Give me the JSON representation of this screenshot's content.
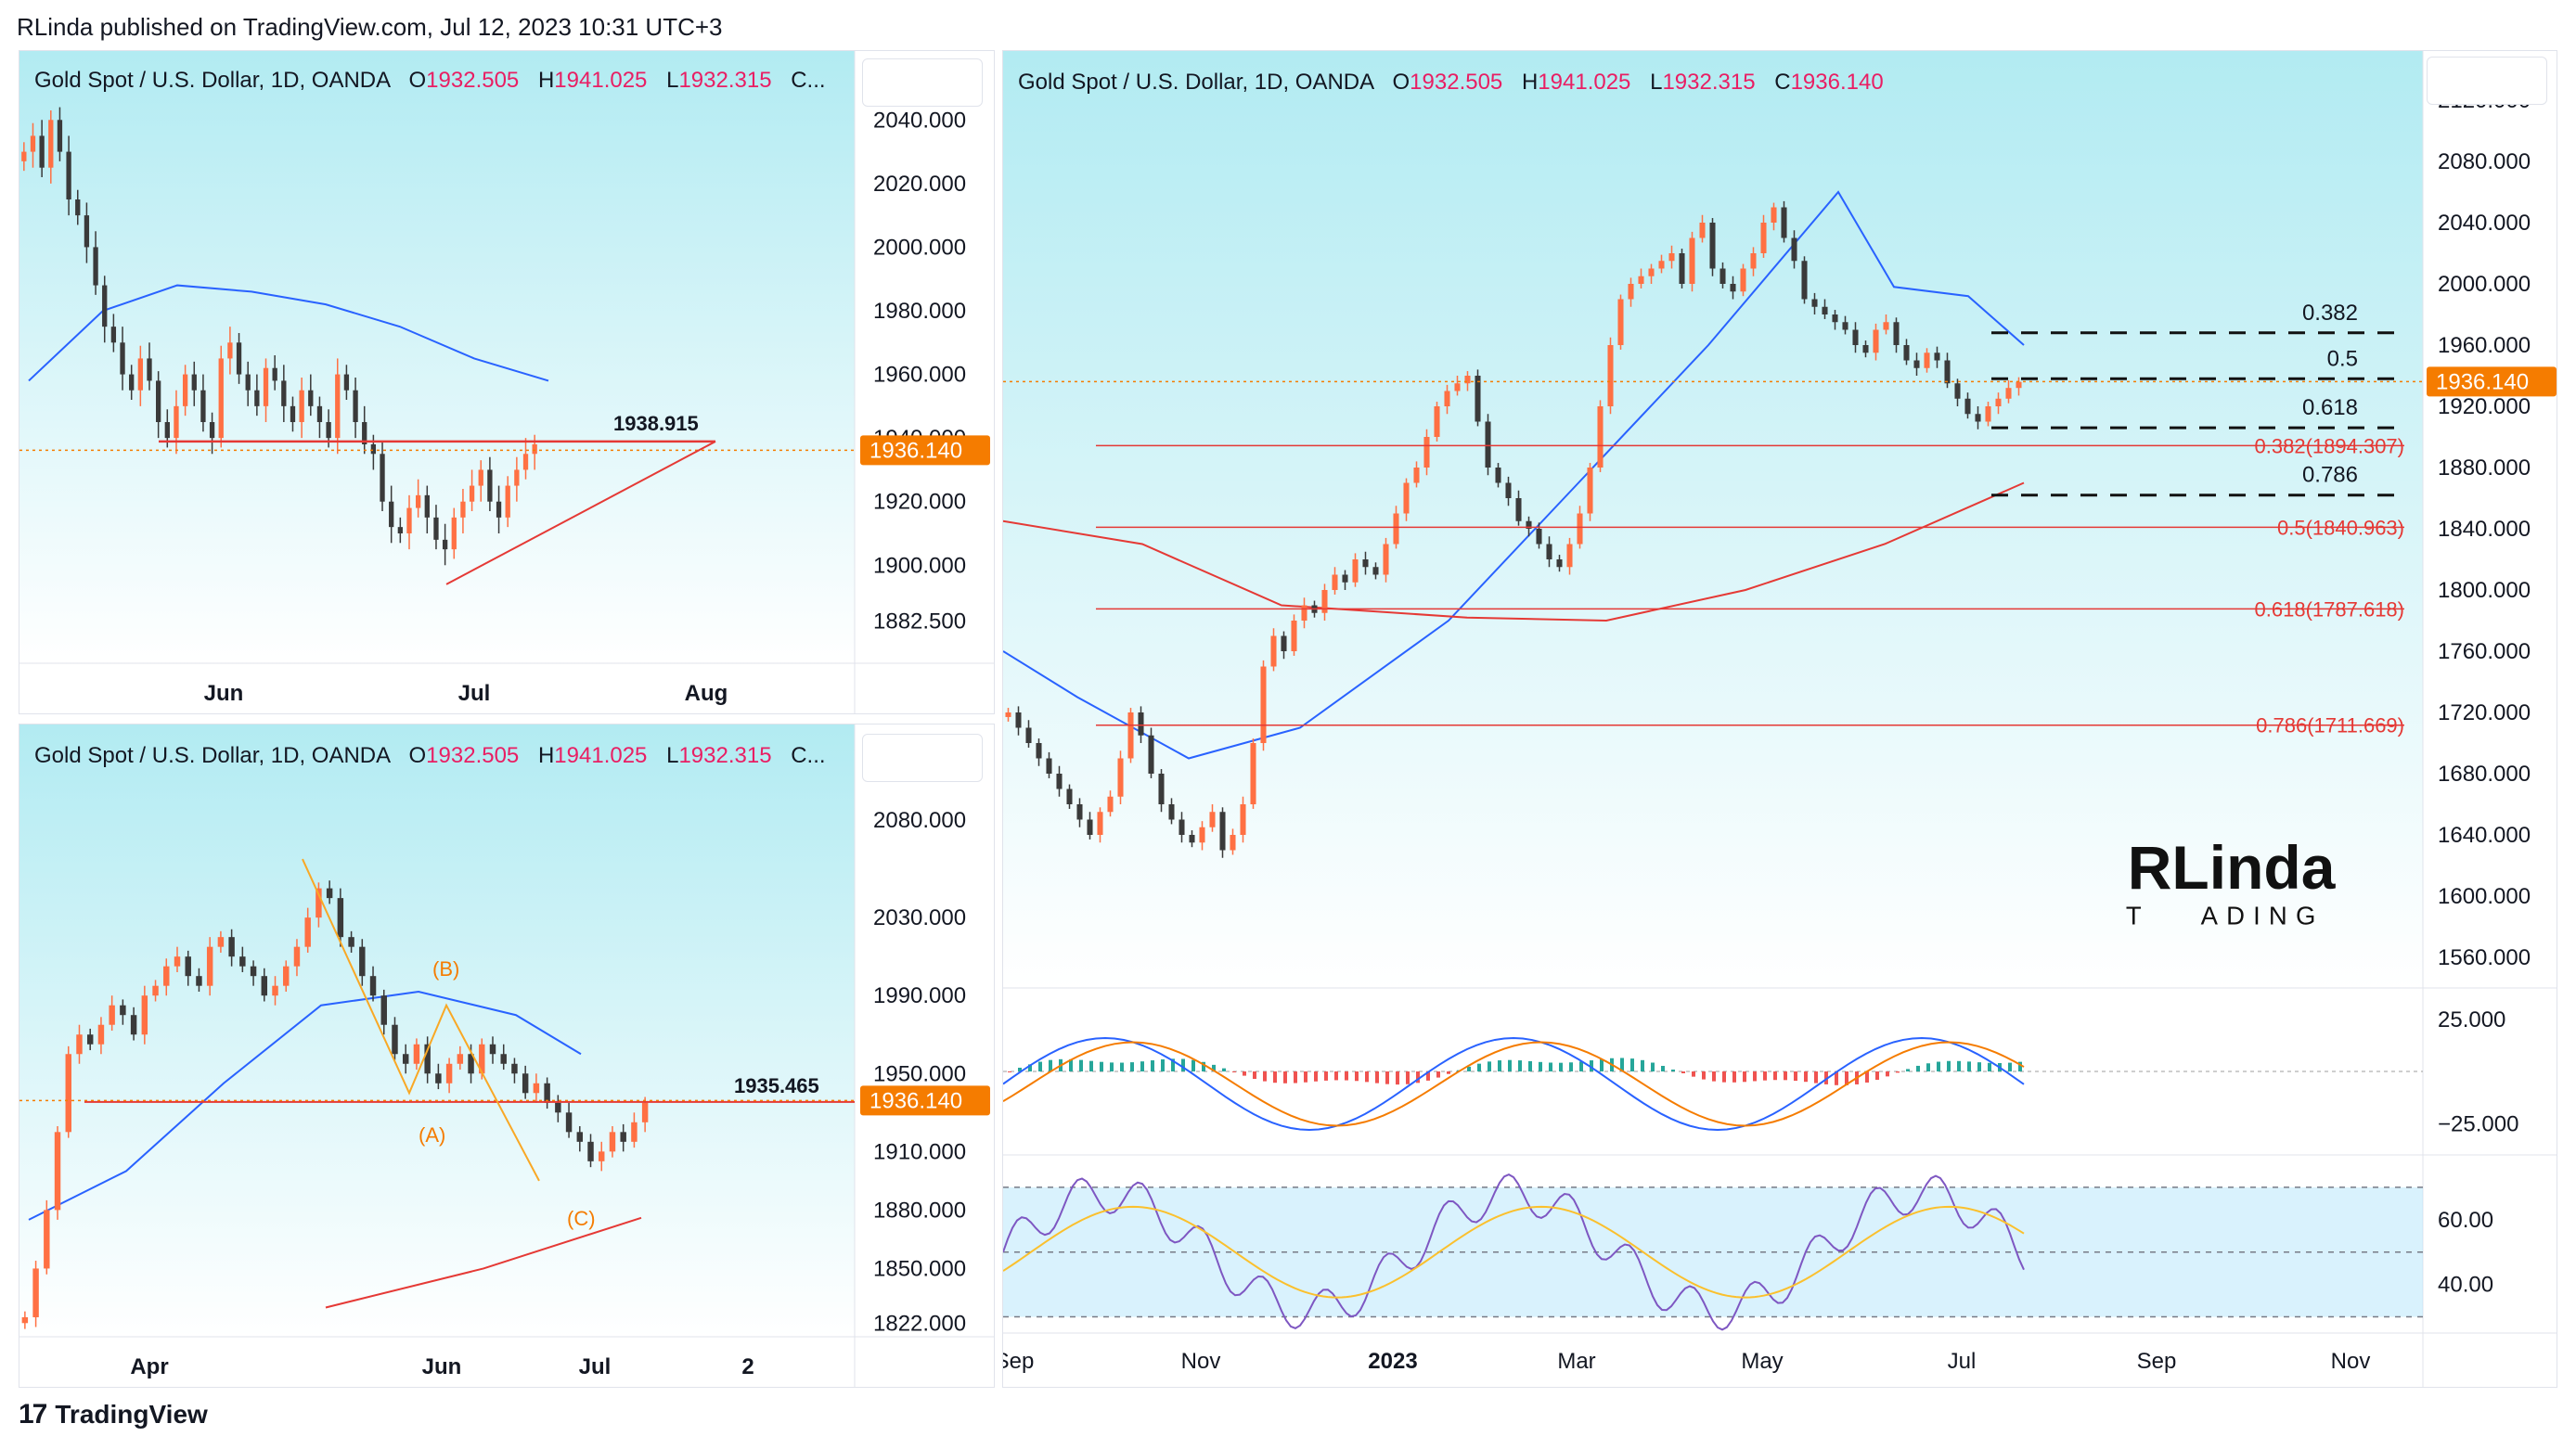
{
  "header": {
    "published": "RLinda published on TradingView.com, Jul 12, 2023 10:31 UTC+3"
  },
  "footer": {
    "brand": "TradingView",
    "logo_glyph": "17"
  },
  "watermark": {
    "top": "RLinda",
    "bottom_left": "T",
    "bottom_right": "ADING"
  },
  "colors": {
    "bg_gradient_top": "#b2ebf2",
    "bg_gradient_bottom": "#ffffff",
    "bull": "#ff7043",
    "bear": "#3a3a3a",
    "ma_blue": "#2962ff",
    "ma_red": "#e53935",
    "price_tag": "#f57c00",
    "legend_value": "#e91e63"
  },
  "chart_data": [
    {
      "type": "candlestick",
      "title": "Gold Spot / U.S. Dollar, 1D, OANDA",
      "legend": {
        "O": "1932.505",
        "H": "1941.025",
        "L": "1932.315",
        "C": "C..."
      },
      "y_ticks": [
        "2040.000",
        "2020.000",
        "2000.000",
        "1980.000",
        "1960.000",
        "1940.000",
        "1920.000",
        "1900.000",
        "1882.500"
      ],
      "ylim": [
        1875,
        2050
      ],
      "x_ticks": [
        "Jun",
        "Jul",
        "Aug"
      ],
      "last_price": "1936.140",
      "annotation_level": {
        "label": "1938.915",
        "value": 1938.915
      },
      "triangle_support": [
        [
          0.0,
          1894
        ],
        [
          1.0,
          1938.9
        ]
      ],
      "ma": [
        [
          0,
          1958
        ],
        [
          0.1,
          1980
        ],
        [
          0.2,
          1988
        ],
        [
          0.3,
          1986
        ],
        [
          0.4,
          1982
        ],
        [
          0.5,
          1975
        ],
        [
          0.6,
          1965
        ],
        [
          0.7,
          1958
        ]
      ],
      "closes": [
        2030,
        2035,
        2025,
        2040,
        2030,
        2015,
        2010,
        2000,
        1988,
        1975,
        1970,
        1960,
        1955,
        1965,
        1958,
        1945,
        1940,
        1950,
        1960,
        1955,
        1945,
        1940,
        1965,
        1970,
        1960,
        1955,
        1950,
        1962,
        1958,
        1950,
        1945,
        1955,
        1950,
        1945,
        1940,
        1960,
        1955,
        1945,
        1938,
        1935,
        1920,
        1912,
        1910,
        1918,
        1922,
        1915,
        1908,
        1905,
        1915,
        1920,
        1925,
        1930,
        1920,
        1915,
        1925,
        1930,
        1935,
        1938
      ]
    },
    {
      "type": "candlestick",
      "title": "Gold Spot / U.S. Dollar, 1D, OANDA",
      "legend": {
        "O": "1932.505",
        "H": "1941.025",
        "L": "1932.315",
        "C": "C..."
      },
      "y_ticks": [
        "2080.000",
        "2030.000",
        "1990.000",
        "1950.000",
        "1910.000",
        "1880.000",
        "1850.000",
        "1822.000"
      ],
      "ylim": [
        1815,
        2110
      ],
      "x_ticks": [
        "Apr",
        "Jun",
        "Jul",
        "2"
      ],
      "last_price": "1936.140",
      "annotation_level": {
        "label": "1935.465",
        "value": 1935.465
      },
      "wave_labels": [
        "(A)",
        "(B)",
        "(C)"
      ],
      "closes": [
        1825,
        1850,
        1880,
        1920,
        1960,
        1970,
        1965,
        1975,
        1985,
        1980,
        1970,
        1990,
        1995,
        2005,
        2010,
        2000,
        1995,
        2015,
        2020,
        2010,
        2005,
        2000,
        1990,
        1995,
        2005,
        2015,
        2030,
        2045,
        2040,
        2020,
        2015,
        2000,
        1990,
        1975,
        1960,
        1955,
        1965,
        1950,
        1945,
        1955,
        1960,
        1950,
        1965,
        1960,
        1955,
        1950,
        1940,
        1945,
        1935,
        1930,
        1920,
        1915,
        1905,
        1910,
        1920,
        1915,
        1925,
        1935
      ]
    },
    {
      "type": "candlestick",
      "title": "Gold Spot / U.S. Dollar, 1D, OANDA",
      "legend": {
        "O": "1932.505",
        "H": "1941.025",
        "L": "1932.315",
        "C": "1936.140"
      },
      "y_ticks": [
        "2120.000",
        "2080.000",
        "2040.000",
        "2000.000",
        "1960.000",
        "1920.000",
        "1880.000",
        "1840.000",
        "1800.000",
        "1760.000",
        "1720.000",
        "1680.000",
        "1640.000",
        "1600.000",
        "1560.000"
      ],
      "ylim": [
        1540,
        2140
      ],
      "x_ticks": [
        "Sep",
        "Nov",
        "2023",
        "Mar",
        "May",
        "Jul",
        "Sep",
        "Nov"
      ],
      "last_price": "1936.140",
      "fib_right": [
        {
          "label": "0.382",
          "value": 1968
        },
        {
          "label": "0.5",
          "value": 1938
        },
        {
          "label": "0.618",
          "value": 1906
        },
        {
          "label": "0.786",
          "value": 1862
        }
      ],
      "fib_left": [
        {
          "label": "0.382(1894.307)",
          "value": 1894.307
        },
        {
          "label": "0.5(1840.963)",
          "value": 1840.963
        },
        {
          "label": "0.618(1787.618)",
          "value": 1787.618
        },
        {
          "label": "0.786(1711.669)",
          "value": 1711.669
        }
      ],
      "closes": [
        1720,
        1710,
        1700,
        1690,
        1680,
        1670,
        1660,
        1650,
        1640,
        1655,
        1665,
        1690,
        1720,
        1705,
        1680,
        1660,
        1650,
        1640,
        1635,
        1645,
        1655,
        1630,
        1640,
        1660,
        1700,
        1750,
        1770,
        1760,
        1780,
        1790,
        1785,
        1800,
        1810,
        1805,
        1820,
        1815,
        1810,
        1830,
        1850,
        1870,
        1880,
        1900,
        1920,
        1930,
        1935,
        1940,
        1910,
        1880,
        1870,
        1860,
        1845,
        1840,
        1830,
        1820,
        1815,
        1830,
        1850,
        1880,
        1920,
        1960,
        1990,
        2000,
        2005,
        2010,
        2015,
        2020,
        2000,
        2030,
        2040,
        2010,
        2000,
        1995,
        2010,
        2020,
        2040,
        2050,
        2030,
        2015,
        1990,
        1985,
        1980,
        1975,
        1970,
        1960,
        1955,
        1970,
        1975,
        1960,
        1950,
        1945,
        1955,
        1950,
        1935,
        1925,
        1915,
        1910,
        1920,
        1925,
        1932,
        1936
      ]
    },
    {
      "type": "oscillator",
      "y_ticks": [
        "25.000",
        "−25.000"
      ],
      "ylim": [
        -40,
        40
      ]
    },
    {
      "type": "rsi",
      "y_ticks": [
        "60.00",
        "40.00"
      ],
      "ylim": [
        25,
        80
      ],
      "bands": [
        70,
        50,
        30
      ]
    }
  ]
}
